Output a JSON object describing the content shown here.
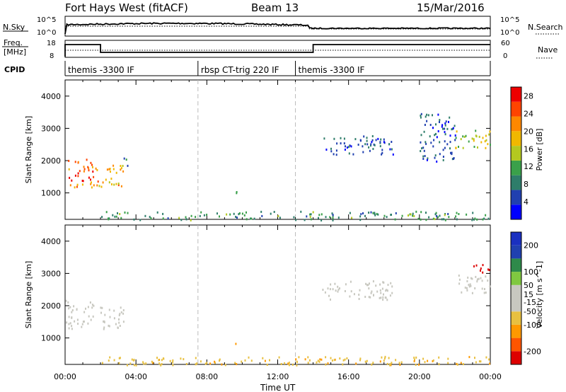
{
  "header": {
    "radar": "Fort Hays West (fitACF)",
    "beam": "Beam 13",
    "date": "15/Mar/2016"
  },
  "sky_panel": {
    "left_label": "N.Sky",
    "right_label": "N.Search",
    "ticks_top": "10^5",
    "ticks_bottom": "10^0"
  },
  "freq_panel": {
    "left_label_1": "Freq.",
    "left_label_2": "[MHz]",
    "left_tick_top": "18",
    "left_tick_bottom": "8",
    "right_tick_top": "60",
    "right_tick_bottom": "0",
    "right_label": "Nave"
  },
  "cpid_panel": {
    "label": "CPID",
    "segments": [
      "themis -3300 IF",
      "rbsp CT-trig 220 IF",
      "themis -3300 IF"
    ],
    "segment_bounds_h": [
      0,
      7.5,
      13,
      24
    ]
  },
  "colors": {
    "power": [
      "#0000ff",
      "#2040b0",
      "#2e7d6a",
      "#3aa04a",
      "#b4c820",
      "#f0b800",
      "#ff8800",
      "#ff4400",
      "#ee0000"
    ],
    "velocity": [
      "#dd0000",
      "#ff5500",
      "#ff9900",
      "#e8c040",
      "#c8c8c0",
      "#c8c8c0",
      "#80c840",
      "#2e8a4a",
      "#2040b0",
      "#1a30c0"
    ]
  },
  "chart_data": [
    {
      "type": "heatmap",
      "name": "Power",
      "xlabel": "Time UT",
      "ylabel": "Slant Range [km]",
      "xlim": [
        0,
        24
      ],
      "ylim": [
        180,
        4500
      ],
      "x_ticks": [
        "00:00",
        "04:00",
        "08:00",
        "12:00",
        "16:00",
        "20:00",
        "00:00"
      ],
      "y_ticks": [
        1000,
        2000,
        3000,
        4000
      ],
      "colorbar": {
        "label": "Power [dB]",
        "ticks": [
          4,
          8,
          12,
          16,
          20,
          24,
          28
        ],
        "range": [
          0,
          30
        ]
      },
      "regions": [
        {
          "t": [
            0.0,
            1.6
          ],
          "r": [
            1200,
            2100
          ],
          "level": 22
        },
        {
          "t": [
            1.7,
            3.3
          ],
          "r": [
            1200,
            1900
          ],
          "level": 20
        },
        {
          "t": [
            3.3,
            3.6
          ],
          "r": [
            1700,
            2100
          ],
          "level": 8
        },
        {
          "t": [
            9.6,
            9.8
          ],
          "r": [
            800,
            1100
          ],
          "level": 10
        },
        {
          "t": [
            14.5,
            18.5
          ],
          "r": [
            2200,
            2800
          ],
          "level": 6
        },
        {
          "t": [
            20.0,
            22.0
          ],
          "r": [
            2000,
            3500
          ],
          "level": 6
        },
        {
          "t": [
            22.0,
            24.0
          ],
          "r": [
            2400,
            3000
          ],
          "level": 16
        },
        {
          "t": [
            2.0,
            24.0
          ],
          "r": [
            180,
            450
          ],
          "level": 10
        }
      ]
    },
    {
      "type": "heatmap",
      "name": "Velocity",
      "xlabel": "Time UT",
      "ylabel": "Slant Range [km]",
      "xlim": [
        0,
        24
      ],
      "ylim": [
        180,
        4500
      ],
      "x_ticks": [
        "00:00",
        "04:00",
        "08:00",
        "12:00",
        "16:00",
        "20:00",
        "00:00"
      ],
      "y_ticks": [
        1000,
        2000,
        3000,
        4000
      ],
      "colorbar": {
        "label": "Velocity [m s^-1]",
        "ticks": [
          200,
          100,
          50,
          15,
          -15,
          -50,
          -100,
          -200
        ],
        "range": [
          -250,
          250
        ]
      },
      "regions": [
        {
          "t": [
            0.0,
            1.6
          ],
          "r": [
            1300,
            2200
          ],
          "value": 0
        },
        {
          "t": [
            1.7,
            3.3
          ],
          "r": [
            1300,
            2000
          ],
          "value": 0
        },
        {
          "t": [
            9.6,
            9.8
          ],
          "r": [
            800,
            900
          ],
          "value": -60
        },
        {
          "t": [
            14.5,
            18.5
          ],
          "r": [
            2200,
            2800
          ],
          "value": 0
        },
        {
          "t": [
            22.0,
            24.0
          ],
          "r": [
            2400,
            3000
          ],
          "value": 0
        },
        {
          "t": [
            23.0,
            24.0
          ],
          "r": [
            3000,
            3300
          ],
          "value": -220
        },
        {
          "t": [
            2.0,
            24.0
          ],
          "r": [
            180,
            450
          ],
          "value": -40
        }
      ]
    }
  ],
  "axis_title": "Time UT"
}
